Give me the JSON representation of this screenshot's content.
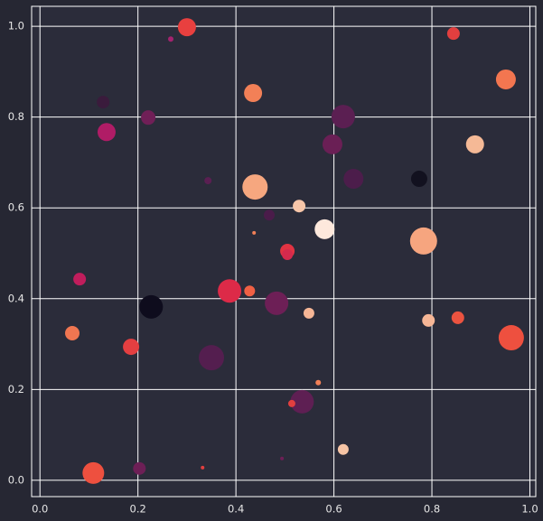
{
  "chart_data": {
    "type": "scatter",
    "xlim": [
      -0.017,
      1.012
    ],
    "ylim": [
      -0.036,
      1.044
    ],
    "xticks": [
      {
        "value": 0,
        "label": "0.0"
      },
      0.2,
      0.4,
      0.6,
      0.8,
      {
        "value": 1,
        "label": "1.0"
      }
    ],
    "yticks": [
      {
        "value": 0,
        "label": "0.0"
      },
      0.2,
      0.4,
      0.6,
      0.8,
      {
        "value": 1,
        "label": "1.0"
      }
    ],
    "grid": true,
    "series": [
      {
        "x": [
          0.3,
          0.267,
          0.844,
          0.951,
          0.129,
          0.435,
          0.619,
          0.221,
          0.136,
          0.597,
          0.888,
          0.64,
          0.774,
          0.343,
          0.439,
          0.529,
          0.468,
          0.437,
          0.581,
          0.783,
          0.505,
          0.505,
          0.081,
          0.387,
          0.428,
          0.483,
          0.227,
          0.549,
          0.793,
          0.853,
          0.066,
          0.962,
          0.186,
          0.35,
          0.568,
          0.535,
          0.514,
          0.619,
          0.109,
          0.203,
          0.332,
          0.494
        ],
        "values": [
          0.998,
          0.972,
          0.984,
          0.883,
          0.833,
          0.853,
          0.801,
          0.799,
          0.767,
          0.74,
          0.74,
          0.664,
          0.664,
          0.66,
          0.646,
          0.604,
          0.584,
          0.545,
          0.553,
          0.527,
          0.505,
          0.497,
          0.443,
          0.417,
          0.417,
          0.39,
          0.382,
          0.368,
          0.352,
          0.358,
          0.324,
          0.314,
          0.294,
          0.27,
          0.215,
          0.173,
          0.169,
          0.068,
          0.016,
          0.026,
          0.028,
          0.048
        ],
        "sizes": [
          100,
          9,
          49,
          121,
          49,
          100,
          169,
          64,
          100,
          121,
          100,
          121,
          81,
          16,
          196,
          49,
          36,
          4,
          121,
          225,
          64,
          36,
          49,
          169,
          36,
          169,
          169,
          36,
          49,
          49,
          64,
          196,
          81,
          196,
          9,
          169,
          16,
          36,
          144,
          49,
          4,
          4
        ],
        "colors": [
          "#e8403f",
          "#a3236e",
          "#e23f3f",
          "#f37650",
          "#3a1b3c",
          "#f28057",
          "#5b1f52",
          "#701f57",
          "#b01c66",
          "#6a1f55",
          "#f5b996",
          "#4c1d4b",
          "#12111f",
          "#5a1f52",
          "#f6a77f",
          "#f7c6a9",
          "#4a1c4a",
          "#f28057",
          "#fde8dc",
          "#f6a57f",
          "#e13342",
          "#d52a4d",
          "#c01d5c",
          "#dd2a48",
          "#f06044",
          "#6d1f56",
          "#0e0c1d",
          "#f6b696",
          "#f6b696",
          "#eb5340",
          "#f07651",
          "#ee503f",
          "#e43f41",
          "#541e4f",
          "#f28057",
          "#5e1f53",
          "#e23f3f",
          "#f6c4a5",
          "#ee503f",
          "#6d1f56",
          "#e23f3f",
          "#6d1f56"
        ]
      }
    ]
  }
}
